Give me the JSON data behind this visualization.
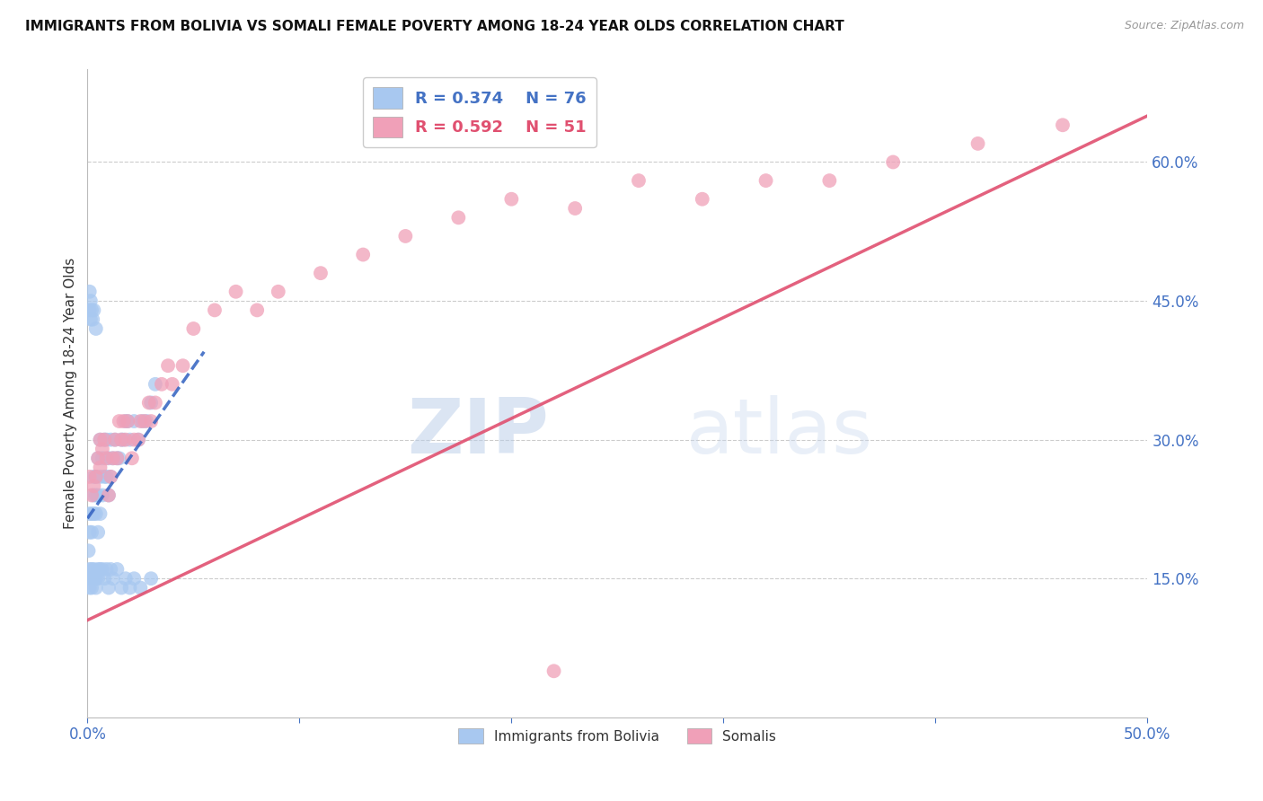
{
  "title": "IMMIGRANTS FROM BOLIVIA VS SOMALI FEMALE POVERTY AMONG 18-24 YEAR OLDS CORRELATION CHART",
  "source": "Source: ZipAtlas.com",
  "ylabel": "Female Poverty Among 18-24 Year Olds",
  "xlim": [
    0,
    0.5
  ],
  "ylim": [
    0,
    0.7
  ],
  "right_yticks": [
    0.15,
    0.3,
    0.45,
    0.6
  ],
  "right_yticklabels": [
    "15.0%",
    "30.0%",
    "45.0%",
    "60.0%"
  ],
  "xticks": [
    0.0,
    0.1,
    0.2,
    0.3,
    0.4,
    0.5
  ],
  "xticklabels": [
    "0.0%",
    "",
    "",
    "",
    "",
    "50.0%"
  ],
  "legend_labels": [
    "Immigrants from Bolivia",
    "Somalis"
  ],
  "R_bolivia": 0.374,
  "N_bolivia": 76,
  "R_somali": 0.592,
  "N_somali": 51,
  "blue_color": "#A8C8F0",
  "pink_color": "#F0A0B8",
  "blue_line_color": "#3060C0",
  "pink_line_color": "#E05070",
  "text_blue": "#4472C4",
  "text_pink": "#E05070",
  "watermark_zip": "ZIP",
  "watermark_atlas": "atlas",
  "background_color": "#FFFFFF",
  "grid_color": "#CCCCCC",
  "bolivia_x": [
    0.0005,
    0.001,
    0.001,
    0.001,
    0.001,
    0.0015,
    0.0015,
    0.002,
    0.002,
    0.002,
    0.0025,
    0.003,
    0.003,
    0.003,
    0.003,
    0.004,
    0.004,
    0.004,
    0.004,
    0.005,
    0.005,
    0.005,
    0.006,
    0.006,
    0.006,
    0.007,
    0.007,
    0.008,
    0.008,
    0.009,
    0.009,
    0.01,
    0.01,
    0.011,
    0.011,
    0.012,
    0.013,
    0.014,
    0.015,
    0.016,
    0.017,
    0.018,
    0.019,
    0.02,
    0.022,
    0.024,
    0.026,
    0.028,
    0.03,
    0.032,
    0.0005,
    0.001,
    0.001,
    0.0015,
    0.002,
    0.002,
    0.003,
    0.003,
    0.004,
    0.004,
    0.005,
    0.005,
    0.006,
    0.007,
    0.008,
    0.009,
    0.01,
    0.011,
    0.012,
    0.014,
    0.016,
    0.018,
    0.02,
    0.022,
    0.025,
    0.03
  ],
  "bolivia_y": [
    0.18,
    0.44,
    0.46,
    0.2,
    0.22,
    0.43,
    0.45,
    0.44,
    0.2,
    0.22,
    0.43,
    0.44,
    0.22,
    0.24,
    0.26,
    0.22,
    0.24,
    0.42,
    0.26,
    0.2,
    0.24,
    0.28,
    0.22,
    0.26,
    0.3,
    0.24,
    0.28,
    0.26,
    0.3,
    0.26,
    0.3,
    0.24,
    0.28,
    0.26,
    0.3,
    0.28,
    0.3,
    0.28,
    0.28,
    0.3,
    0.3,
    0.32,
    0.32,
    0.3,
    0.32,
    0.3,
    0.32,
    0.32,
    0.34,
    0.36,
    0.15,
    0.16,
    0.14,
    0.15,
    0.16,
    0.14,
    0.15,
    0.16,
    0.15,
    0.14,
    0.16,
    0.15,
    0.16,
    0.16,
    0.15,
    0.16,
    0.14,
    0.16,
    0.15,
    0.16,
    0.14,
    0.15,
    0.14,
    0.15,
    0.14,
    0.15
  ],
  "somali_x": [
    0.001,
    0.002,
    0.003,
    0.004,
    0.005,
    0.006,
    0.006,
    0.007,
    0.008,
    0.009,
    0.01,
    0.011,
    0.012,
    0.013,
    0.014,
    0.015,
    0.016,
    0.017,
    0.018,
    0.019,
    0.021,
    0.022,
    0.024,
    0.025,
    0.027,
    0.029,
    0.03,
    0.032,
    0.035,
    0.038,
    0.04,
    0.045,
    0.05,
    0.06,
    0.07,
    0.08,
    0.09,
    0.11,
    0.13,
    0.15,
    0.175,
    0.2,
    0.23,
    0.26,
    0.29,
    0.32,
    0.35,
    0.38,
    0.42,
    0.46,
    0.22
  ],
  "somali_y": [
    0.26,
    0.24,
    0.25,
    0.26,
    0.28,
    0.27,
    0.3,
    0.29,
    0.3,
    0.28,
    0.24,
    0.26,
    0.28,
    0.3,
    0.28,
    0.32,
    0.3,
    0.32,
    0.3,
    0.32,
    0.28,
    0.3,
    0.3,
    0.32,
    0.32,
    0.34,
    0.32,
    0.34,
    0.36,
    0.38,
    0.36,
    0.38,
    0.42,
    0.44,
    0.46,
    0.44,
    0.46,
    0.48,
    0.5,
    0.52,
    0.54,
    0.56,
    0.55,
    0.58,
    0.56,
    0.58,
    0.58,
    0.6,
    0.62,
    0.64,
    0.05
  ],
  "bolivia_line_x": [
    0.0,
    0.055
  ],
  "bolivia_line_y": [
    0.215,
    0.395
  ],
  "somali_line_x": [
    0.0,
    0.5
  ],
  "somali_line_y": [
    0.105,
    0.65
  ]
}
